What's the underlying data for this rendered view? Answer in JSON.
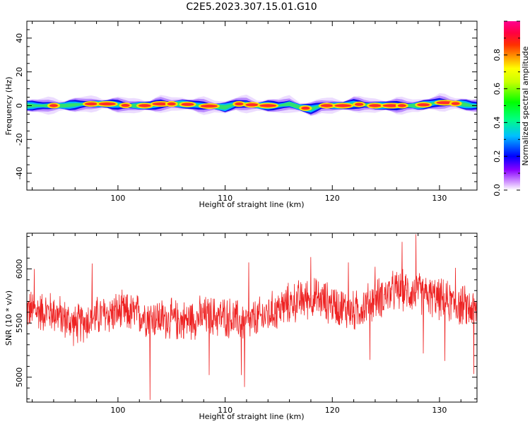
{
  "title": "C2E5.2023.307.15.01.G10",
  "chart_data": [
    {
      "type": "heatmap",
      "title": "C2E5.2023.307.15.01.G10",
      "xlabel": "Height of straight line (km)",
      "ylabel": "Frequency (Hz)",
      "xlim": [
        91.5,
        133.5
      ],
      "ylim": [
        -50,
        50
      ],
      "x_ticks": [
        "100",
        "110",
        "120",
        "130"
      ],
      "y_ticks": [
        "40",
        "20",
        "0",
        "-20",
        "-40"
      ],
      "colorbar": {
        "label": "Normalized spectral amplitude",
        "range": [
          0.0,
          1.0
        ],
        "ticks": [
          "0.0",
          "0.2",
          "0.4",
          "0.6",
          "0.8"
        ],
        "colormap": "rainbow (white-violet-blue-cyan-green-yellow-red-magenta)"
      },
      "band": {
        "center_hz": [
          [
            91.5,
            0
          ],
          [
            95,
            0
          ],
          [
            97,
            1
          ],
          [
            99,
            1
          ],
          [
            101,
            0
          ],
          [
            103,
            0
          ],
          [
            104,
            1
          ],
          [
            106,
            1
          ],
          [
            108,
            0
          ],
          [
            110,
            -1
          ],
          [
            111,
            1
          ],
          [
            112,
            1
          ],
          [
            113,
            0
          ],
          [
            115,
            0
          ],
          [
            116,
            1
          ],
          [
            117,
            -1
          ],
          [
            118,
            -2
          ],
          [
            119,
            0
          ],
          [
            121,
            0
          ],
          [
            122,
            1
          ],
          [
            124,
            0
          ],
          [
            127,
            0
          ],
          [
            128,
            0
          ],
          [
            129,
            1
          ],
          [
            130,
            2
          ],
          [
            132,
            1
          ],
          [
            133,
            0
          ]
        ],
        "peaks_x": [
          94,
          97.5,
          99,
          100.7,
          102.5,
          104,
          105,
          106.5,
          108.5,
          111.3,
          112.5,
          114,
          117.5,
          119.5,
          121,
          122.5,
          124,
          125.5,
          126.5,
          128.5,
          130.5,
          131.5
        ]
      }
    },
    {
      "type": "line",
      "xlabel": "Height of straight line (km)",
      "ylabel": "SNR (10 * v/v)",
      "xlim": [
        91.5,
        133.5
      ],
      "ylim": [
        4770,
        6330
      ],
      "x_ticks": [
        "100",
        "110",
        "120",
        "130"
      ],
      "y_ticks": [
        "6000",
        "5500",
        "5000"
      ],
      "series": [
        {
          "color": "#ee2222",
          "trend": [
            [
              91.5,
              5620
            ],
            [
              94,
              5600
            ],
            [
              96,
              5480
            ],
            [
              98,
              5560
            ],
            [
              100,
              5600
            ],
            [
              102,
              5580
            ],
            [
              104,
              5540
            ],
            [
              106,
              5520
            ],
            [
              108,
              5560
            ],
            [
              110,
              5560
            ],
            [
              112,
              5500
            ],
            [
              114,
              5580
            ],
            [
              116,
              5680
            ],
            [
              118,
              5740
            ],
            [
              120,
              5680
            ],
            [
              122,
              5600
            ],
            [
              124,
              5720
            ],
            [
              126,
              5800
            ],
            [
              128,
              5780
            ],
            [
              130,
              5720
            ],
            [
              132,
              5660
            ],
            [
              133.5,
              5620
            ]
          ],
          "extremes": [
            [
              92.2,
              6000
            ],
            [
              97.6,
              6050
            ],
            [
              103,
              4790
            ],
            [
              108.5,
              5020
            ],
            [
              111.5,
              5020
            ],
            [
              111.8,
              4910
            ],
            [
              112.2,
              6060
            ],
            [
              118,
              6110
            ],
            [
              121.5,
              6060
            ],
            [
              123.5,
              5160
            ],
            [
              124,
              6020
            ],
            [
              126.5,
              6250
            ],
            [
              127.8,
              6320
            ],
            [
              128.5,
              5220
            ],
            [
              130.5,
              5150
            ],
            [
              131.5,
              6010
            ],
            [
              133.2,
              5030
            ]
          ]
        }
      ]
    }
  ]
}
